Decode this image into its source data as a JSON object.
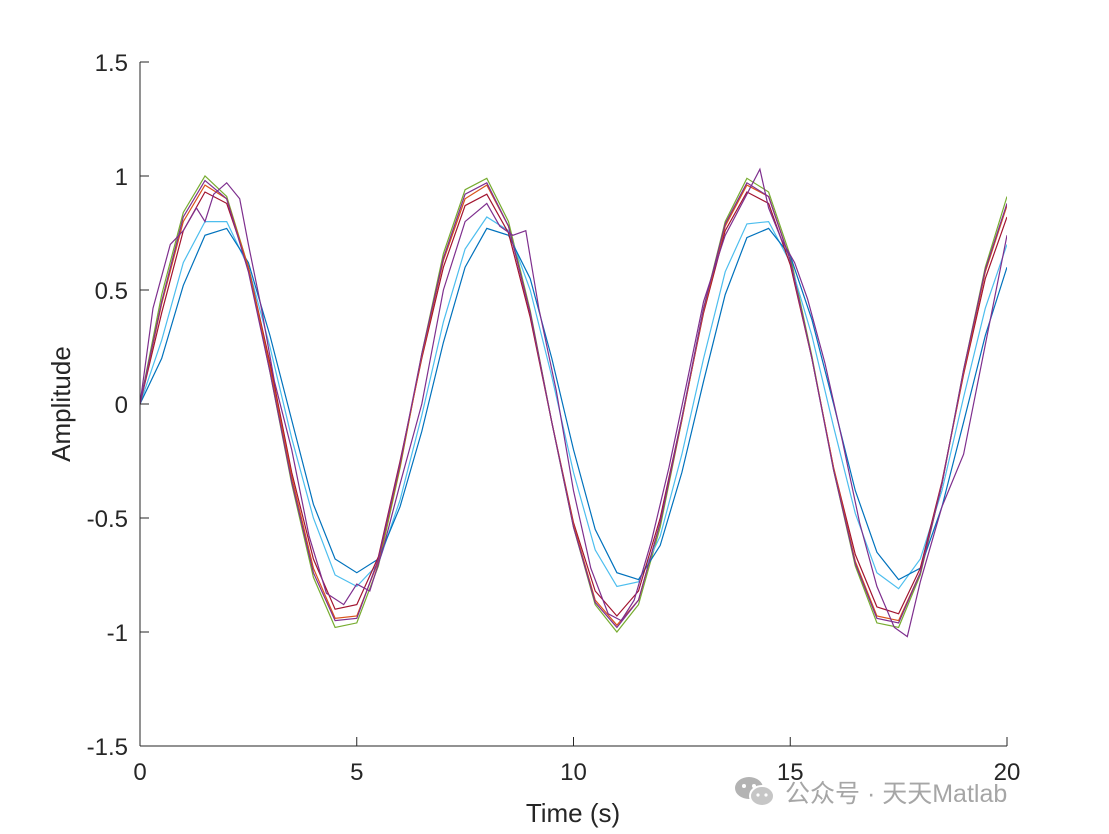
{
  "chart_data": {
    "type": "line",
    "xlabel": "Time (s)",
    "ylabel": "Amplitude",
    "xlim": [
      0,
      20
    ],
    "ylim": [
      -1.5,
      1.5
    ],
    "xticks": [
      0,
      5,
      10,
      15,
      20
    ],
    "yticks": [
      -1.5,
      -1,
      -0.5,
      0,
      0.5,
      1,
      1.5
    ],
    "xtick_labels": [
      "0",
      "5",
      "10",
      "15",
      "20"
    ],
    "ytick_labels": [
      "-1.5",
      "-1",
      "-0.5",
      "0",
      "0.5",
      "1",
      "1.5"
    ],
    "grid": false,
    "legend": "none",
    "series": [
      {
        "color": "#77AC30",
        "x": [
          0,
          0.5,
          1,
          1.5,
          2,
          2.5,
          3,
          3.5,
          4,
          4.5,
          5,
          5.5,
          6,
          6.5,
          7,
          7.5,
          8,
          8.5,
          9,
          9.5,
          10,
          10.5,
          11,
          11.5,
          12,
          12.5,
          13,
          13.5,
          14,
          14.5,
          15,
          15.5,
          16,
          16.5,
          17,
          17.5,
          18,
          18.5,
          19,
          19.5,
          20
        ],
        "y": [
          0,
          0.48,
          0.84,
          1.0,
          0.91,
          0.6,
          0.14,
          -0.35,
          -0.76,
          -0.98,
          -0.96,
          -0.71,
          -0.28,
          0.22,
          0.66,
          0.94,
          0.99,
          0.8,
          0.41,
          -0.08,
          -0.54,
          -0.88,
          -1.0,
          -0.88,
          -0.54,
          -0.07,
          0.42,
          0.8,
          0.99,
          0.93,
          0.65,
          0.21,
          -0.29,
          -0.71,
          -0.96,
          -0.98,
          -0.75,
          -0.35,
          0.15,
          0.6,
          0.91
        ]
      },
      {
        "color": "#4DBEEE",
        "x": [
          0,
          0.5,
          1,
          1.5,
          2,
          2.5,
          3,
          3.5,
          4,
          4.5,
          5,
          5.5,
          6,
          6.5,
          7,
          7.5,
          8,
          8.5,
          9,
          9.5,
          10,
          10.5,
          11,
          11.5,
          12,
          12.5,
          13,
          13.5,
          14,
          14.5,
          15,
          15.5,
          16,
          16.5,
          17,
          17.5,
          18,
          18.5,
          19,
          19.5,
          20
        ],
        "y": [
          0,
          0.28,
          0.62,
          0.8,
          0.8,
          0.6,
          0.25,
          -0.15,
          -0.5,
          -0.75,
          -0.8,
          -0.7,
          -0.42,
          -0.05,
          0.36,
          0.68,
          0.82,
          0.76,
          0.5,
          0.12,
          -0.3,
          -0.64,
          -0.8,
          -0.78,
          -0.58,
          -0.22,
          0.2,
          0.58,
          0.79,
          0.8,
          0.62,
          0.3,
          -0.1,
          -0.48,
          -0.74,
          -0.81,
          -0.68,
          -0.38,
          0.03,
          0.42,
          0.7
        ]
      },
      {
        "color": "#0072BD",
        "x": [
          0,
          0.5,
          1,
          1.5,
          2,
          2.5,
          3,
          3.5,
          4,
          4.5,
          5,
          5.5,
          6,
          6.5,
          7,
          7.5,
          8,
          8.5,
          9,
          9.5,
          10,
          10.5,
          11,
          11.5,
          12,
          12.5,
          13,
          13.5,
          14,
          14.5,
          15,
          15.5,
          16,
          16.5,
          17,
          17.5,
          18,
          18.5,
          19,
          19.5,
          20
        ],
        "y": [
          0,
          0.2,
          0.52,
          0.74,
          0.77,
          0.62,
          0.3,
          -0.07,
          -0.44,
          -0.68,
          -0.74,
          -0.68,
          -0.45,
          -0.12,
          0.27,
          0.6,
          0.77,
          0.74,
          0.55,
          0.2,
          -0.2,
          -0.55,
          -0.74,
          -0.77,
          -0.62,
          -0.3,
          0.1,
          0.48,
          0.73,
          0.77,
          0.65,
          0.37,
          0.0,
          -0.38,
          -0.65,
          -0.77,
          -0.72,
          -0.45,
          -0.08,
          0.3,
          0.6
        ]
      },
      {
        "color": "#A2142F",
        "x": [
          0,
          0.5,
          1,
          1.5,
          2,
          2.5,
          3,
          3.5,
          4,
          4.5,
          5,
          5.5,
          6,
          6.5,
          7,
          7.5,
          8,
          8.5,
          9,
          9.5,
          10,
          10.5,
          11,
          11.5,
          12,
          12.5,
          13,
          13.5,
          14,
          14.5,
          15,
          15.5,
          16,
          16.5,
          17,
          17.5,
          18,
          18.5,
          19,
          19.5,
          20
        ],
        "y": [
          0,
          0.4,
          0.76,
          0.93,
          0.88,
          0.6,
          0.18,
          -0.3,
          -0.68,
          -0.9,
          -0.88,
          -0.67,
          -0.25,
          0.2,
          0.6,
          0.87,
          0.92,
          0.75,
          0.38,
          -0.08,
          -0.52,
          -0.82,
          -0.93,
          -0.82,
          -0.5,
          -0.06,
          0.4,
          0.76,
          0.93,
          0.88,
          0.61,
          0.2,
          -0.28,
          -0.66,
          -0.89,
          -0.92,
          -0.72,
          -0.34,
          0.13,
          0.55,
          0.82
        ]
      },
      {
        "color": "#D95319",
        "x": [
          0,
          0.5,
          1,
          1.5,
          2,
          2.5,
          3,
          3.5,
          4,
          4.5,
          5,
          5.5,
          6,
          6.5,
          7,
          7.5,
          8,
          8.5,
          9,
          9.5,
          10,
          10.5,
          11,
          11.5,
          12,
          12.5,
          13,
          13.5,
          14,
          14.5,
          15,
          15.5,
          16,
          16.5,
          17,
          17.5,
          18,
          18.5,
          19,
          19.5,
          20
        ],
        "y": [
          0,
          0.44,
          0.8,
          0.96,
          0.9,
          0.6,
          0.16,
          -0.32,
          -0.72,
          -0.94,
          -0.93,
          -0.69,
          -0.27,
          0.21,
          0.63,
          0.9,
          0.96,
          0.78,
          0.4,
          -0.08,
          -0.53,
          -0.86,
          -0.97,
          -0.86,
          -0.52,
          -0.07,
          0.41,
          0.78,
          0.96,
          0.91,
          0.63,
          0.2,
          -0.28,
          -0.69,
          -0.93,
          -0.95,
          -0.74,
          -0.35,
          0.14,
          0.58,
          0.87
        ]
      },
      {
        "color": "#7E2F8E",
        "x": [
          0,
          0.3,
          0.7,
          1.0,
          1.3,
          1.5,
          1.7,
          2.0,
          2.3,
          2.5,
          2.8,
          3.1,
          3.5,
          3.9,
          4.3,
          4.7,
          5.0,
          5.3,
          5.6,
          6.0,
          6.5,
          7.0,
          7.5,
          8.0,
          8.3,
          8.6,
          8.9,
          9.2,
          9.6,
          10.0,
          10.4,
          10.8,
          11.1,
          11.4,
          11.8,
          12.2,
          12.6,
          13.0,
          13.5,
          14.0,
          14.3,
          14.5,
          14.8,
          15.1,
          15.4,
          15.8,
          16.2,
          16.6,
          17.0,
          17.4,
          17.7,
          18.0,
          18.5,
          19.0,
          19.5,
          20.0
        ],
        "y": [
          0,
          0.42,
          0.7,
          0.76,
          0.86,
          0.8,
          0.92,
          0.97,
          0.9,
          0.7,
          0.42,
          0.1,
          -0.2,
          -0.58,
          -0.83,
          -0.88,
          -0.79,
          -0.82,
          -0.64,
          -0.35,
          0.0,
          0.5,
          0.8,
          0.88,
          0.78,
          0.74,
          0.76,
          0.42,
          0.06,
          -0.38,
          -0.72,
          -0.92,
          -0.95,
          -0.86,
          -0.6,
          -0.28,
          0.08,
          0.45,
          0.74,
          0.92,
          1.03,
          0.86,
          0.72,
          0.62,
          0.46,
          0.18,
          -0.16,
          -0.52,
          -0.8,
          -0.98,
          -1.02,
          -0.78,
          -0.45,
          -0.22,
          0.26,
          0.74
        ]
      },
      {
        "color": "#7E2F8E",
        "x": [
          0,
          0.5,
          1,
          1.5,
          2,
          2.5,
          3,
          3.5,
          4,
          4.5,
          5,
          5.5,
          6,
          6.5,
          7,
          7.5,
          8,
          8.5,
          9,
          9.5,
          10,
          10.5,
          11,
          11.5,
          12,
          12.5,
          13,
          13.5,
          14,
          14.5,
          15,
          15.5,
          16,
          16.5,
          17,
          17.5,
          18,
          18.5,
          19,
          19.5,
          20
        ],
        "y": [
          0,
          0.45,
          0.82,
          0.98,
          0.9,
          0.58,
          0.14,
          -0.34,
          -0.74,
          -0.95,
          -0.94,
          -0.68,
          -0.26,
          0.22,
          0.64,
          0.92,
          0.97,
          0.78,
          0.4,
          -0.08,
          -0.54,
          -0.87,
          -0.98,
          -0.86,
          -0.52,
          -0.06,
          0.42,
          0.79,
          0.97,
          0.91,
          0.63,
          0.2,
          -0.29,
          -0.7,
          -0.94,
          -0.96,
          -0.74,
          -0.35,
          0.15,
          0.59,
          0.88
        ]
      }
    ]
  },
  "watermark": {
    "text": "公众号 · 天天Matlab",
    "icon": "wechat-icon",
    "color": "#a6a6a6"
  }
}
